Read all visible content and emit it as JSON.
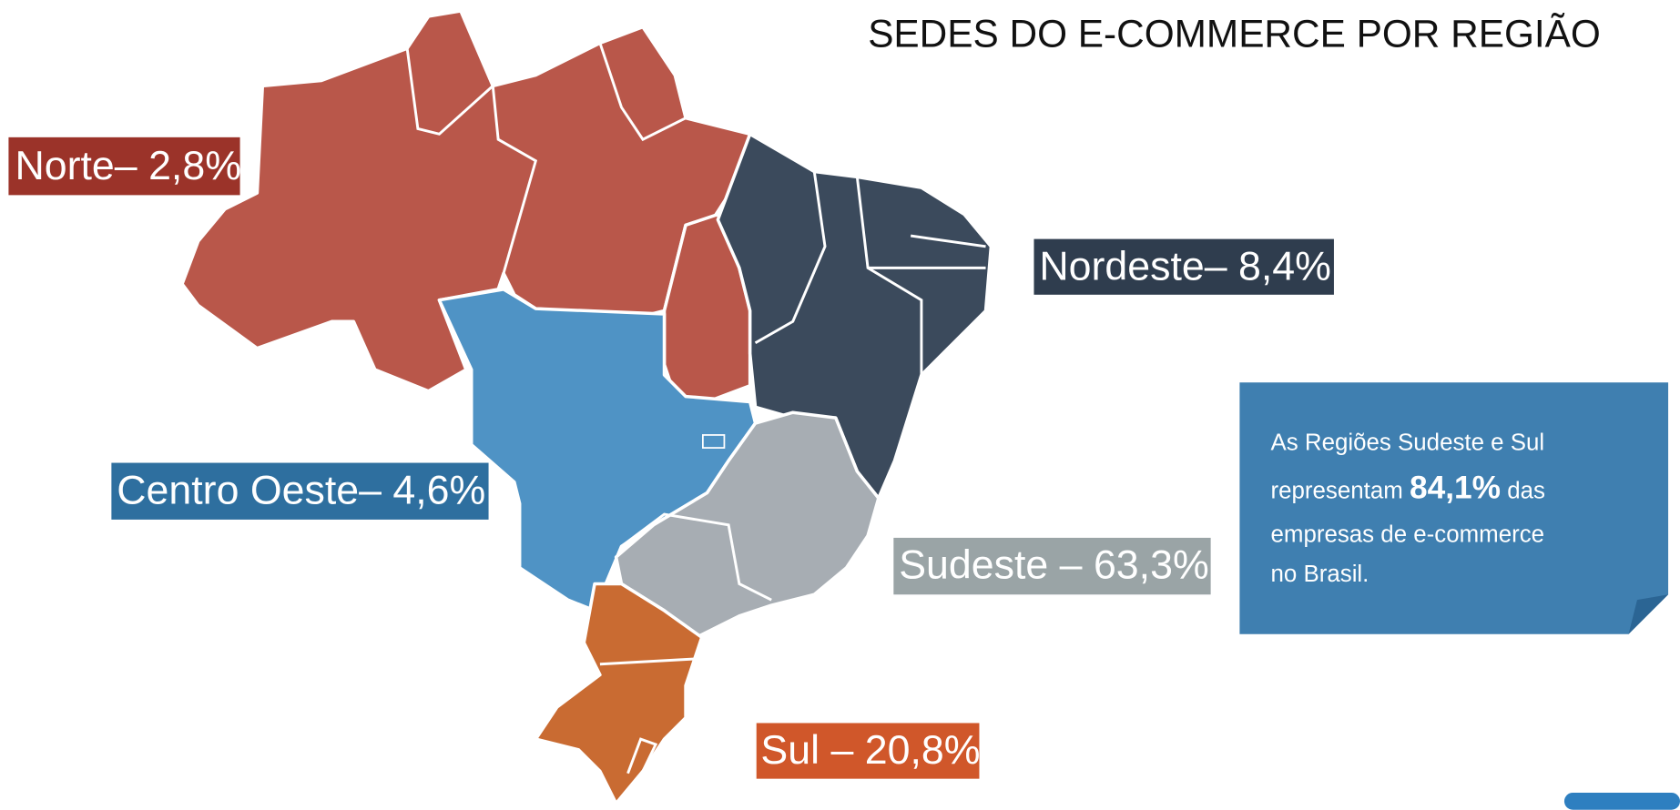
{
  "title": "SEDES DO E-COMMERCE POR REGIÃO",
  "regions": [
    {
      "label": "Norte– 2,8%",
      "color": "#b9574a",
      "label_color": "#9b3329"
    },
    {
      "label": "Nordeste– 8,4%",
      "color": "#3b4a5c",
      "label_color": "#2f3d4e"
    },
    {
      "label": "Centro Oeste– 4,6%",
      "color": "#4f93c5",
      "label_color": "#2e6f9f"
    },
    {
      "label": "Sudeste – 63,3%",
      "color": "#a7adb3",
      "label_color": "#9aa4a6"
    },
    {
      "label": "Sul – 20,8%",
      "color": "#c96b32",
      "label_color": "#d0572a"
    }
  ],
  "note": {
    "lines": [
      "As Regiões Sudeste e Sul",
      "representam",
      "84,1%",
      "das",
      "empresas de e-commerce",
      "no Brasil."
    ]
  }
}
